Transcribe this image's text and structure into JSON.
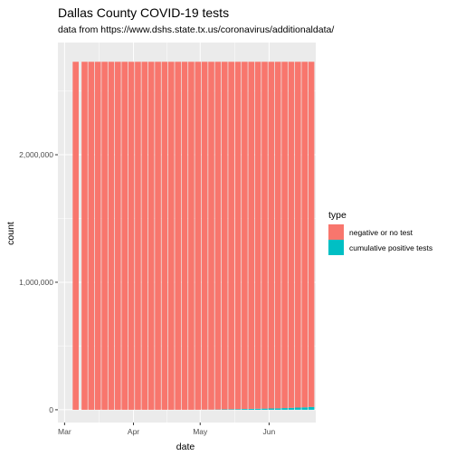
{
  "chart_data": {
    "type": "bar",
    "stacked": true,
    "title": "Dallas County COVID-19 tests",
    "subtitle": "data from https://www.dshs.state.tx.us/coronavirus/additionaldata/",
    "xlabel": "date",
    "ylabel": "count",
    "ylim": [
      -100000,
      2880000
    ],
    "y_ticks": [
      0,
      1000000,
      2000000
    ],
    "y_tick_labels": [
      "0",
      "1,000,000",
      "2,000,000"
    ],
    "x_ticks": [
      "2020-03-01",
      "2020-04-01",
      "2020-05-01",
      "2020-06-01"
    ],
    "x_tick_labels": [
      "Mar",
      "Apr",
      "May",
      "Jun"
    ],
    "xlim": [
      "2020-02-27",
      "2020-06-22"
    ],
    "grid": true,
    "legend_title": "type",
    "legend_position": "right",
    "series_colors": {
      "negative or no test": "#F8766D",
      "cumulative positive tests": "#00BFC4"
    },
    "panel_background": "#EBEBEB",
    "x": [
      "2020-03-06",
      "2020-03-10",
      "2020-03-13",
      "2020-03-16",
      "2020-03-19",
      "2020-03-22",
      "2020-03-25",
      "2020-03-28",
      "2020-03-31",
      "2020-04-03",
      "2020-04-06",
      "2020-04-09",
      "2020-04-12",
      "2020-04-15",
      "2020-04-18",
      "2020-04-21",
      "2020-04-24",
      "2020-04-27",
      "2020-04-30",
      "2020-05-03",
      "2020-05-06",
      "2020-05-09",
      "2020-05-12",
      "2020-05-15",
      "2020-05-18",
      "2020-05-21",
      "2020-05-24",
      "2020-05-27",
      "2020-05-30",
      "2020-06-02",
      "2020-06-05",
      "2020-06-08",
      "2020-06-11",
      "2020-06-14",
      "2020-06-17",
      "2020-06-20"
    ],
    "series": [
      {
        "name": "negative or no test",
        "values": [
          2729000,
          2729000,
          2729000,
          2729000,
          2729000,
          2729000,
          2729000,
          2729000,
          2729000,
          2729000,
          2729000,
          2729000,
          2729000,
          2729000,
          2729000,
          2729000,
          2729000,
          2729000,
          2729000,
          2728000,
          2728000,
          2727000,
          2726000,
          2725000,
          2724000,
          2723000,
          2722000,
          2721000,
          2720000,
          2719000,
          2718000,
          2716000,
          2714000,
          2712000,
          2710000,
          2707000
        ]
      },
      {
        "name": "cumulative positive tests",
        "values": [
          0,
          0,
          0,
          0,
          0,
          0,
          0,
          0,
          0,
          0,
          0,
          0,
          0,
          0,
          0,
          0,
          0,
          0,
          0,
          1000,
          1000,
          2000,
          3000,
          4000,
          5000,
          6000,
          7000,
          8000,
          9000,
          10000,
          11000,
          13000,
          15000,
          17000,
          19000,
          22000
        ]
      }
    ]
  }
}
